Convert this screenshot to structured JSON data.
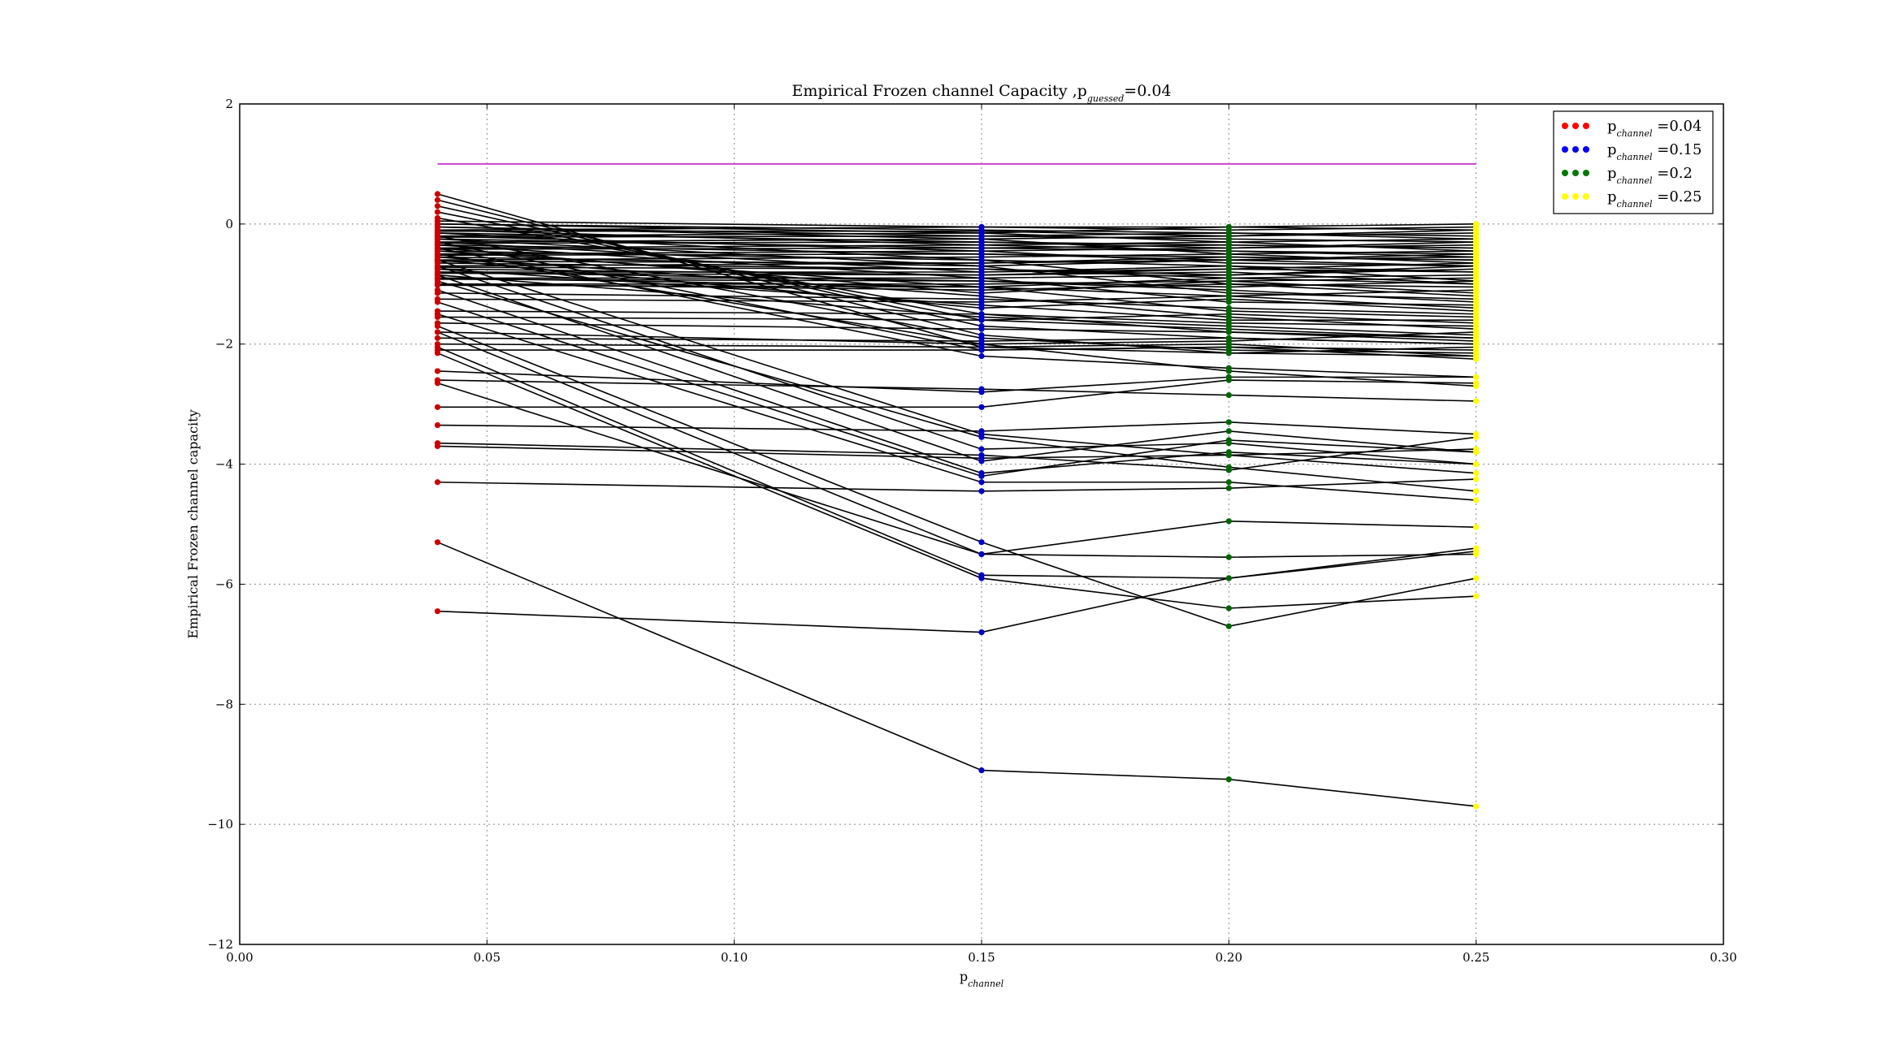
{
  "chart_data": {
    "type": "line",
    "title": "Empirical Frozen channel Capacity ,p",
    "title_sub": "guessed",
    "title_tail": "=0.04",
    "xlabel": "p",
    "xlabel_sub": "channel",
    "ylabel": "Empirical Frozen channel capacity",
    "xlim": [
      0.0,
      0.3
    ],
    "ylim": [
      -12,
      2
    ],
    "xticks": [
      0.0,
      0.05,
      0.1,
      0.15,
      0.2,
      0.25,
      0.3
    ],
    "xtick_labels": [
      "0.00",
      "0.05",
      "0.10",
      "0.15",
      "0.20",
      "0.25",
      "0.30"
    ],
    "yticks": [
      2,
      0,
      -2,
      -4,
      -6,
      -8,
      -10,
      -12
    ],
    "ytick_labels": [
      "2",
      "0",
      "−2",
      "−4",
      "−6",
      "−8",
      "−10",
      "−12"
    ],
    "grid": true,
    "legend_position": "top-right",
    "x": [
      0.04,
      0.15,
      0.2,
      0.25
    ],
    "reference_line": {
      "x": [
        0.04,
        0.25
      ],
      "y": [
        1.0,
        1.0
      ],
      "color": "#cc44cc"
    },
    "point_colors": [
      "#cc0000",
      "#0000cc",
      "#006600",
      "#ffff00"
    ],
    "legend": [
      {
        "label_main": "p",
        "label_sub": "channel",
        "label_tail": " =0.04",
        "color": "#ff0000"
      },
      {
        "label_main": "p",
        "label_sub": "channel",
        "label_tail": " =0.15",
        "color": "#0000ff"
      },
      {
        "label_main": "p",
        "label_sub": "channel",
        "label_tail": " =0.2",
        "color": "#007700"
      },
      {
        "label_main": "p",
        "label_sub": "channel",
        "label_tail": " =0.25",
        "color": "#ffff00"
      }
    ],
    "series": [
      {
        "values": [
          -5.3,
          -9.1,
          -9.25,
          -9.7
        ]
      },
      {
        "values": [
          -6.45,
          -6.8,
          -5.9,
          -5.4
        ]
      },
      {
        "values": [
          -4.3,
          -4.45,
          -4.4,
          -4.25
        ]
      },
      {
        "values": [
          -3.7,
          -3.9,
          -3.85,
          -3.75
        ]
      },
      {
        "values": [
          -3.65,
          -3.85,
          -4.1,
          -3.55
        ]
      },
      {
        "values": [
          -3.35,
          -3.45,
          -3.3,
          -3.5
        ]
      },
      {
        "values": [
          -3.05,
          -3.05,
          -2.6,
          -2.65
        ]
      },
      {
        "values": [
          -2.65,
          -5.5,
          -4.95,
          -5.05
        ]
      },
      {
        "values": [
          -2.45,
          -2.8,
          -2.55,
          -2.55
        ]
      },
      {
        "values": [
          -2.6,
          -2.75,
          -2.85,
          -2.95
        ]
      },
      {
        "values": [
          -2.15,
          -5.9,
          -6.4,
          -6.2
        ]
      },
      {
        "values": [
          -2.05,
          -5.85,
          -5.9,
          -5.45
        ]
      },
      {
        "values": [
          -1.8,
          -5.5,
          -5.55,
          -5.5
        ]
      },
      {
        "values": [
          -1.7,
          -5.3,
          -6.7,
          -5.9
        ]
      },
      {
        "values": [
          -1.5,
          -4.3,
          -4.3,
          -4.6
        ]
      },
      {
        "values": [
          -1.3,
          -4.2,
          -3.6,
          -3.8
        ]
      },
      {
        "values": [
          -1.1,
          -4.15,
          -3.8,
          -4.0
        ]
      },
      {
        "values": [
          -0.95,
          -3.55,
          -4.05,
          -4.45
        ]
      },
      {
        "values": [
          -0.85,
          -3.95,
          -3.45,
          -3.8
        ]
      },
      {
        "values": [
          -0.7,
          -3.75,
          -3.65,
          -4.0
        ]
      },
      {
        "values": [
          -0.6,
          -3.5,
          -3.85,
          -4.15
        ]
      },
      {
        "values": [
          -0.5,
          -2.0,
          -2.45,
          -2.7
        ]
      },
      {
        "values": [
          -0.4,
          -2.2,
          -2.4,
          -2.55
        ]
      },
      {
        "values": [
          -0.3,
          -2.1,
          -2.05,
          -2.25
        ]
      },
      {
        "values": [
          -0.2,
          -1.9,
          -2.1,
          -2.15
        ]
      },
      {
        "values": [
          0.5,
          -2.05,
          -2.0,
          -2.2
        ]
      },
      {
        "values": [
          0.4,
          -1.85,
          -2.15,
          -2.05
        ]
      },
      {
        "values": [
          0.3,
          -1.7,
          -1.9,
          -2.0
        ]
      },
      {
        "values": [
          0.2,
          -1.6,
          -1.75,
          -1.9
        ]
      },
      {
        "values": [
          0.1,
          -1.5,
          -1.8,
          -1.95
        ]
      },
      {
        "values": [
          -2.1,
          -2.1,
          -2.05,
          -2.1
        ]
      },
      {
        "values": [
          -2.0,
          -2.05,
          -2.15,
          -2.2
        ]
      },
      {
        "values": [
          -1.9,
          -1.95,
          -1.9,
          -2.0
        ]
      },
      {
        "values": [
          -1.8,
          -2.0,
          -1.95,
          -1.8
        ]
      },
      {
        "values": [
          -1.65,
          -1.75,
          -1.8,
          -1.9
        ]
      },
      {
        "values": [
          -1.55,
          -1.6,
          -1.5,
          -1.65
        ]
      },
      {
        "values": [
          -1.45,
          -1.5,
          -1.65,
          -1.7
        ]
      },
      {
        "values": [
          -1.25,
          -1.3,
          -1.2,
          -1.4
        ]
      },
      {
        "values": [
          -1.15,
          -1.25,
          -1.4,
          -1.5
        ]
      },
      {
        "values": [
          -1.0,
          -1.1,
          -1.0,
          -1.2
        ]
      },
      {
        "values": [
          -0.9,
          -1.05,
          -1.2,
          -1.1
        ]
      },
      {
        "values": [
          -0.8,
          -0.95,
          -1.1,
          -1.3
        ]
      },
      {
        "values": [
          -0.75,
          -0.85,
          -0.8,
          -1.0
        ]
      },
      {
        "values": [
          -0.65,
          -0.75,
          -0.9,
          -0.85
        ]
      },
      {
        "values": [
          -0.55,
          -0.7,
          -0.6,
          -0.7
        ]
      },
      {
        "values": [
          -0.45,
          -0.6,
          -0.7,
          -0.8
        ]
      },
      {
        "values": [
          -0.35,
          -0.5,
          -0.55,
          -0.6
        ]
      },
      {
        "values": [
          -0.25,
          -0.4,
          -0.45,
          -0.5
        ]
      },
      {
        "values": [
          -0.15,
          -0.3,
          -0.35,
          -0.4
        ]
      },
      {
        "values": [
          -0.05,
          -0.2,
          -0.25,
          -0.3
        ]
      },
      {
        "values": [
          0.0,
          -0.1,
          -0.15,
          -0.2
        ]
      },
      {
        "values": [
          -0.1,
          -0.05,
          -0.1,
          -0.05
        ]
      },
      {
        "values": [
          -0.2,
          -0.15,
          -0.05,
          0.0
        ]
      },
      {
        "values": [
          -0.3,
          -0.25,
          -0.2,
          -0.1
        ]
      },
      {
        "values": [
          -0.4,
          -0.35,
          -0.3,
          -0.25
        ]
      },
      {
        "values": [
          -0.5,
          -0.45,
          -0.4,
          -0.35
        ]
      },
      {
        "values": [
          -0.6,
          -0.55,
          -0.5,
          -0.45
        ]
      },
      {
        "values": [
          -0.7,
          -0.65,
          -0.6,
          -0.55
        ]
      },
      {
        "values": [
          -0.8,
          -0.8,
          -0.75,
          -0.65
        ]
      },
      {
        "values": [
          -0.9,
          -0.9,
          -0.85,
          -0.75
        ]
      },
      {
        "values": [
          -1.0,
          -1.0,
          -0.95,
          -0.9
        ]
      },
      {
        "values": [
          -0.15,
          -0.6,
          -1.0,
          -1.05
        ]
      },
      {
        "values": [
          -0.25,
          -0.7,
          -1.15,
          -1.25
        ]
      },
      {
        "values": [
          -0.35,
          -0.9,
          -1.3,
          -1.35
        ]
      },
      {
        "values": [
          -0.45,
          -1.05,
          -1.45,
          -1.55
        ]
      },
      {
        "values": [
          -0.55,
          -1.2,
          -1.55,
          -1.75
        ]
      },
      {
        "values": [
          -0.1,
          -0.35,
          -0.45,
          -0.55
        ]
      },
      {
        "values": [
          -0.2,
          -0.45,
          -0.65,
          -0.7
        ]
      },
      {
        "values": [
          -0.05,
          -0.25,
          -0.5,
          -0.65
        ]
      },
      {
        "values": [
          0.0,
          -0.15,
          -0.3,
          -0.45
        ]
      },
      {
        "values": [
          -0.3,
          -0.8,
          -0.7,
          -0.95
        ]
      },
      {
        "values": [
          -0.4,
          -1.15,
          -0.95,
          -1.15
        ]
      },
      {
        "values": [
          -0.6,
          -1.4,
          -1.25,
          -1.45
        ]
      },
      {
        "values": [
          -0.75,
          -1.35,
          -1.6,
          -1.6
        ]
      },
      {
        "values": [
          -0.85,
          -1.55,
          -1.7,
          -1.85
        ]
      },
      {
        "values": [
          0.05,
          -0.05,
          -0.05,
          -0.1
        ]
      },
      {
        "values": [
          -0.12,
          -0.12,
          -0.2,
          -0.15
        ]
      },
      {
        "values": [
          -0.22,
          -0.2,
          -0.15,
          -0.25
        ]
      },
      {
        "values": [
          -0.32,
          -0.3,
          -0.4,
          -0.3
        ]
      },
      {
        "values": [
          -0.42,
          -0.4,
          -0.35,
          -0.4
        ]
      },
      {
        "values": [
          -0.52,
          -0.5,
          -0.6,
          -0.5
        ]
      },
      {
        "values": [
          -0.62,
          -0.65,
          -0.55,
          -0.6
        ]
      },
      {
        "values": [
          -0.72,
          -0.75,
          -0.85,
          -0.7
        ]
      },
      {
        "values": [
          -0.82,
          -0.85,
          -0.75,
          -0.8
        ]
      },
      {
        "values": [
          -0.92,
          -0.95,
          -1.05,
          -0.95
        ]
      },
      {
        "values": [
          -1.02,
          -1.05,
          -0.9,
          -1.0
        ]
      }
    ]
  }
}
